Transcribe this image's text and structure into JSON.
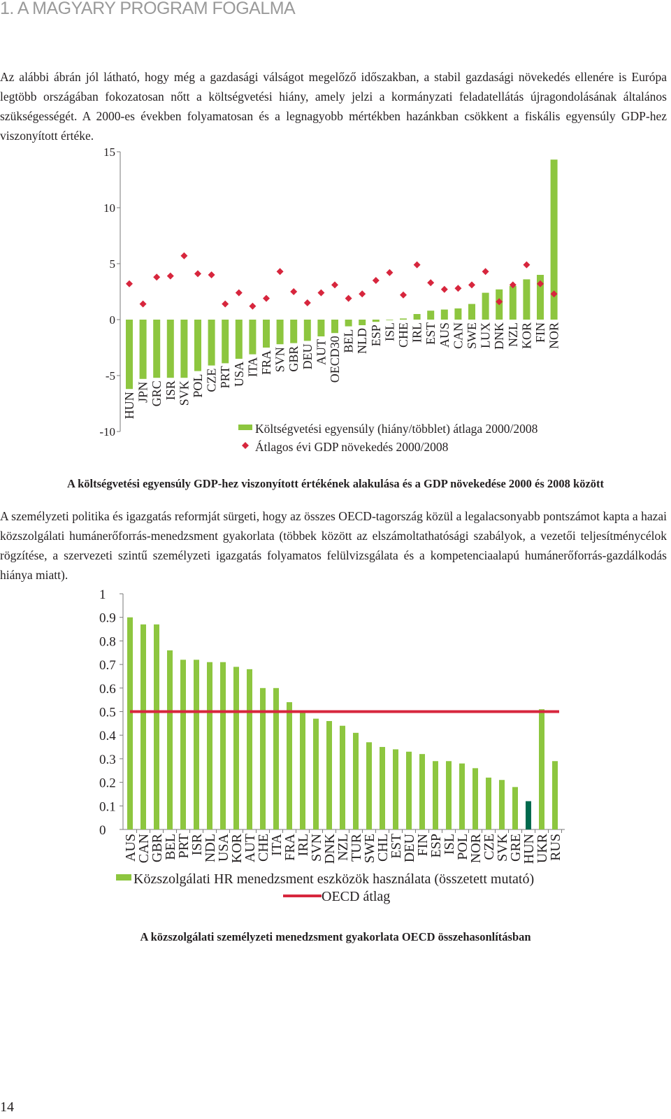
{
  "section_title": "1. A MAGYARY PROGRAM FOGALMA",
  "paragraph_1": "Az alábbi ábrán jól látható, hogy még a gazdasági válságot megelőző időszakban, a stabil gazdasági növekedés ellenére is Európa legtöbb országában fokozatosan nőtt a költségvetési hiány, amely jelzi a kormányzati feladatellátás újragondolásának általános szükségességét. A 2000-es években folyamatosan és a legnagyobb mértékben hazánkban csökkent a fiskális egyensúly GDP-hez viszonyított értéke.",
  "caption_1": "A költségvetési egyensúly GDP-hez viszonyított értékének alakulása és a GDP növekedése 2000 és 2008 között",
  "paragraph_2": "A személyzeti politika és igazgatás reformját sürgeti, hogy az összes OECD-tagország közül a legalacsonyabb pontszámot kapta a hazai közszolgálati humánerőforrás-menedzsment gyakorlata (többek között az elszámoltathatósági szabályok, a vezetői teljesítménycélok rögzítése, a szervezeti szintű személyzeti igazgatás folyamatos felülvizsgálata és a kompetenciaalapú humánerőforrás-gazdálkodás hiánya miatt).",
  "caption_2": "A közszolgálati személyzeti menedzsment gyakorlata OECD összehasonlításban",
  "page_number": "14",
  "colors": {
    "bar": "#8dc63f",
    "bar_highlight": "#006a4e",
    "marker": "#d7263d",
    "reference_line": "#d7263d",
    "title_gray": "#9a9a9a"
  },
  "chart_data": [
    {
      "type": "bar",
      "title": "",
      "categories": [
        "HUN",
        "JPN",
        "GRC",
        "ISR",
        "SVK",
        "POL",
        "CZE",
        "PRT",
        "USA",
        "ITA",
        "FRA",
        "SVN",
        "GBR",
        "DEU",
        "AUT",
        "OECD30",
        "BEL",
        "NLD",
        "ESP",
        "ISL",
        "CHE",
        "IRL",
        "EST",
        "AUS",
        "CAN",
        "SWE",
        "LUX",
        "DNK",
        "NZL",
        "KOR",
        "FIN",
        "NOR"
      ],
      "series": [
        {
          "name": "Költségvetési egyensúly (hiány/többlet) átlaga 2000/2008",
          "kind": "bar",
          "values": [
            -6.2,
            -5.3,
            -5.2,
            -5.2,
            -5.2,
            -4.6,
            -4.1,
            -3.9,
            -3.5,
            -3.1,
            -2.5,
            -2.2,
            -2.1,
            -1.9,
            -1.5,
            -1.2,
            -0.6,
            -0.5,
            -0.2,
            0.0,
            0.1,
            0.5,
            0.8,
            0.9,
            1.0,
            1.4,
            2.4,
            2.7,
            3.0,
            3.6,
            4.0,
            14.3
          ]
        },
        {
          "name": "Átlagos évi GDP növekedés 2000/2008",
          "kind": "marker",
          "values": [
            3.2,
            1.4,
            3.8,
            3.9,
            5.7,
            4.1,
            4.0,
            1.4,
            2.4,
            1.2,
            1.9,
            4.3,
            2.5,
            1.5,
            2.4,
            3.1,
            1.9,
            2.3,
            3.5,
            4.2,
            2.2,
            4.9,
            3.3,
            2.7,
            2.8,
            3.1,
            4.3,
            1.6,
            3.1,
            4.9,
            3.2,
            2.3
          ]
        }
      ],
      "y_ticks": [
        "15",
        "10",
        "5",
        "0",
        "-5",
        "-10"
      ],
      "ylim": [
        -10,
        15
      ],
      "grid": false,
      "legend_position": "bottom-right"
    },
    {
      "type": "bar",
      "title": "",
      "categories": [
        "AUS",
        "CAN",
        "GBR",
        "BEL",
        "PRT",
        "ISR",
        "NDL",
        "USA",
        "KOR",
        "AUT",
        "CHE",
        "ITA",
        "FRA",
        "IRL",
        "SVN",
        "DNK",
        "NZL",
        "TUR",
        "SWE",
        "CHL",
        "EST",
        "DEU",
        "FIN",
        "ESP",
        "ISL",
        "POL",
        "NOR",
        "CZE",
        "SVK",
        "GRE",
        "HUN",
        "UKR",
        "RUS"
      ],
      "series": [
        {
          "name": "Közszolgálati HR menedzsment eszközök használata (összetett mutató)",
          "kind": "bar",
          "values": [
            0.9,
            0.87,
            0.87,
            0.76,
            0.72,
            0.72,
            0.71,
            0.71,
            0.69,
            0.68,
            0.6,
            0.6,
            0.54,
            0.5,
            0.47,
            0.46,
            0.44,
            0.41,
            0.37,
            0.35,
            0.34,
            0.33,
            0.32,
            0.29,
            0.29,
            0.28,
            0.26,
            0.22,
            0.21,
            0.18,
            0.12,
            0.51,
            0.29
          ],
          "highlight_category": "HUN"
        },
        {
          "name": "OECD átlag",
          "kind": "line",
          "value": 0.5
        }
      ],
      "y_ticks": [
        "1",
        "0.9",
        "0.8",
        "0.7",
        "0.6",
        "0.5",
        "0.4",
        "0.3",
        "0.2",
        "0.1",
        "0"
      ],
      "ylim": [
        0,
        1
      ],
      "grid": false,
      "legend_position": "bottom-center"
    }
  ]
}
